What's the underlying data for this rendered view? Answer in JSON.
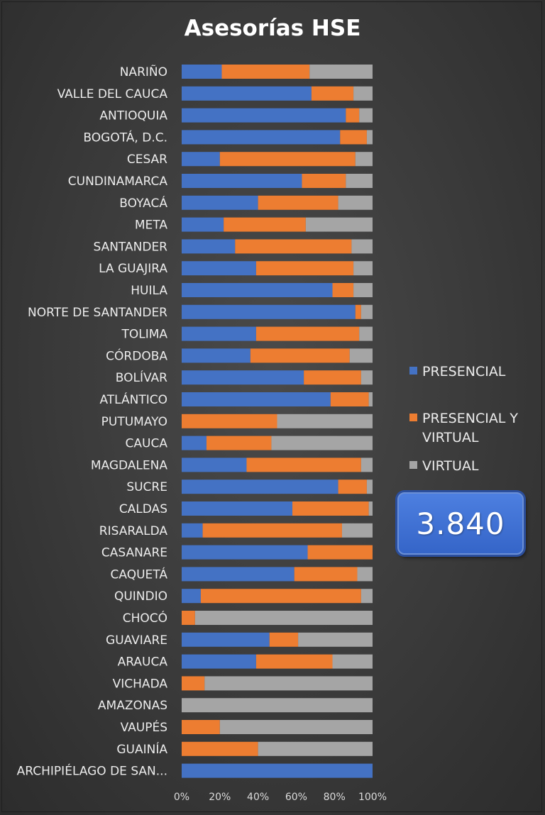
{
  "chart_data": {
    "type": "bar",
    "orientation": "horizontal",
    "stacked": "percent",
    "title": "Asesorías HSE",
    "categories": [
      "NARIÑO",
      "VALLE DEL CAUCA",
      "ANTIOQUIA",
      "BOGOTÁ, D.C.",
      "CESAR",
      "CUNDINAMARCA",
      "BOYACÁ",
      "META",
      "SANTANDER",
      "LA GUAJIRA",
      "HUILA",
      "NORTE DE SANTANDER",
      "TOLIMA",
      "CÓRDOBA",
      "BOLÍVAR",
      "ATLÁNTICO",
      "PUTUMAYO",
      "CAUCA",
      "MAGDALENA",
      "SUCRE",
      "CALDAS",
      "RISARALDA",
      "CASANARE",
      "CAQUETÁ",
      "QUINDIO",
      "CHOCÓ",
      "GUAVIARE",
      "ARAUCA",
      "VICHADA",
      "AMAZONAS",
      "VAUPÉS",
      "GUAINÍA",
      "ARCHIPIÉLAGO DE SAN..."
    ],
    "series": [
      {
        "name": "PRESENCIAL",
        "color": "#4472c4",
        "values": [
          0.21,
          0.68,
          0.86,
          0.83,
          0.2,
          0.63,
          0.4,
          0.22,
          0.28,
          0.39,
          0.79,
          0.91,
          0.39,
          0.36,
          0.64,
          0.78,
          0.0,
          0.13,
          0.34,
          0.82,
          0.58,
          0.11,
          0.66,
          0.59,
          0.1,
          0.0,
          0.46,
          0.39,
          0.0,
          0.0,
          0.0,
          0.0,
          1.0
        ]
      },
      {
        "name": "PRESENCIAL Y VIRTUAL",
        "color": "#ed7d31",
        "values": [
          0.46,
          0.22,
          0.07,
          0.14,
          0.71,
          0.23,
          0.42,
          0.43,
          0.61,
          0.51,
          0.11,
          0.03,
          0.54,
          0.52,
          0.3,
          0.2,
          0.5,
          0.34,
          0.6,
          0.15,
          0.4,
          0.73,
          0.34,
          0.33,
          0.84,
          0.07,
          0.15,
          0.4,
          0.12,
          0.0,
          0.2,
          0.4,
          0.0
        ]
      },
      {
        "name": "VIRTUAL",
        "color": "#a5a5a5",
        "values": [
          0.33,
          0.1,
          0.07,
          0.03,
          0.09,
          0.14,
          0.18,
          0.35,
          0.11,
          0.1,
          0.1,
          0.06,
          0.07,
          0.12,
          0.06,
          0.02,
          0.5,
          0.53,
          0.06,
          0.03,
          0.02,
          0.16,
          0.0,
          0.08,
          0.06,
          0.93,
          0.39,
          0.21,
          0.88,
          1.0,
          0.8,
          0.6,
          0.0
        ]
      }
    ],
    "xlim": [
      0,
      1
    ],
    "x_ticks": [
      "0%",
      "20%",
      "40%",
      "60%",
      "80%",
      "100%"
    ],
    "legend": "right",
    "grid": false
  },
  "total_badge": "3.840"
}
